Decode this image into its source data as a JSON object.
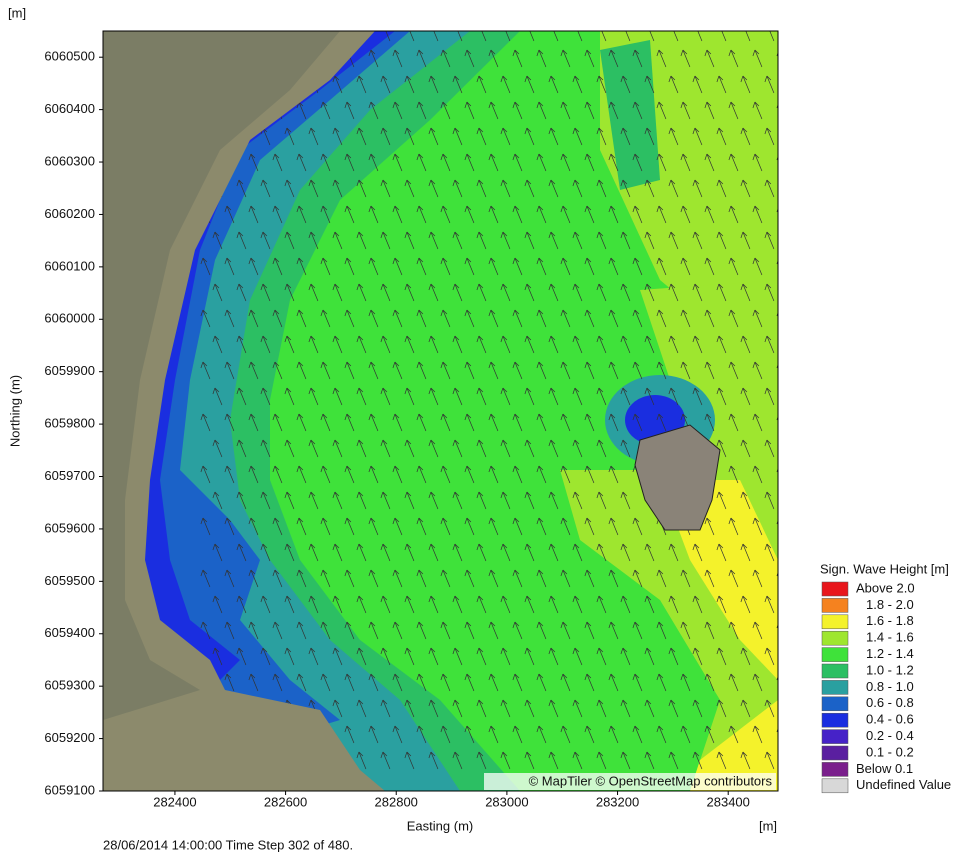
{
  "chart_data": {
    "type": "map",
    "title_unit_y": "[m]",
    "title_unit_x": "[m]",
    "xlabel": "Easting (m)",
    "ylabel": "Northing (m)",
    "xlim": [
      282270,
      283490
    ],
    "ylim": [
      6059100,
      6060550
    ],
    "xticks": [
      282400,
      282600,
      282800,
      283000,
      283200,
      283400
    ],
    "yticks": [
      6059100,
      6059200,
      6059300,
      6059400,
      6059500,
      6059600,
      6059700,
      6059800,
      6059900,
      6060000,
      6060100,
      6060200,
      6060300,
      6060400,
      6060500
    ],
    "footer": "28/06/2014 14:00:00  Time Step 302 of 480.",
    "attribution": "© MapTiler © OpenStreetMap contributors",
    "legend": {
      "title": "Sign. Wave Height [m]",
      "entries": [
        {
          "label": "Above 2.0",
          "color": "#e8161c"
        },
        {
          "label": "1.8 - 2.0",
          "color": "#f5821f"
        },
        {
          "label": "1.6 - 1.8",
          "color": "#f4f22b"
        },
        {
          "label": "1.4 - 1.6",
          "color": "#9ee62f"
        },
        {
          "label": "1.2 - 1.4",
          "color": "#3fe23a"
        },
        {
          "label": "1.0 - 1.2",
          "color": "#2cbf63"
        },
        {
          "label": "0.8 - 1.0",
          "color": "#2aa0a0"
        },
        {
          "label": "0.6 - 0.8",
          "color": "#1b62c8"
        },
        {
          "label": "0.4 - 0.6",
          "color": "#1a2ee0"
        },
        {
          "label": "0.2 - 0.4",
          "color": "#4622c8"
        },
        {
          "label": "0.1 - 0.2",
          "color": "#5a1fa0"
        },
        {
          "label": "Below 0.1",
          "color": "#7a1f8c"
        },
        {
          "label": "Undefined Value",
          "color": "#d8d8d8"
        }
      ]
    }
  }
}
